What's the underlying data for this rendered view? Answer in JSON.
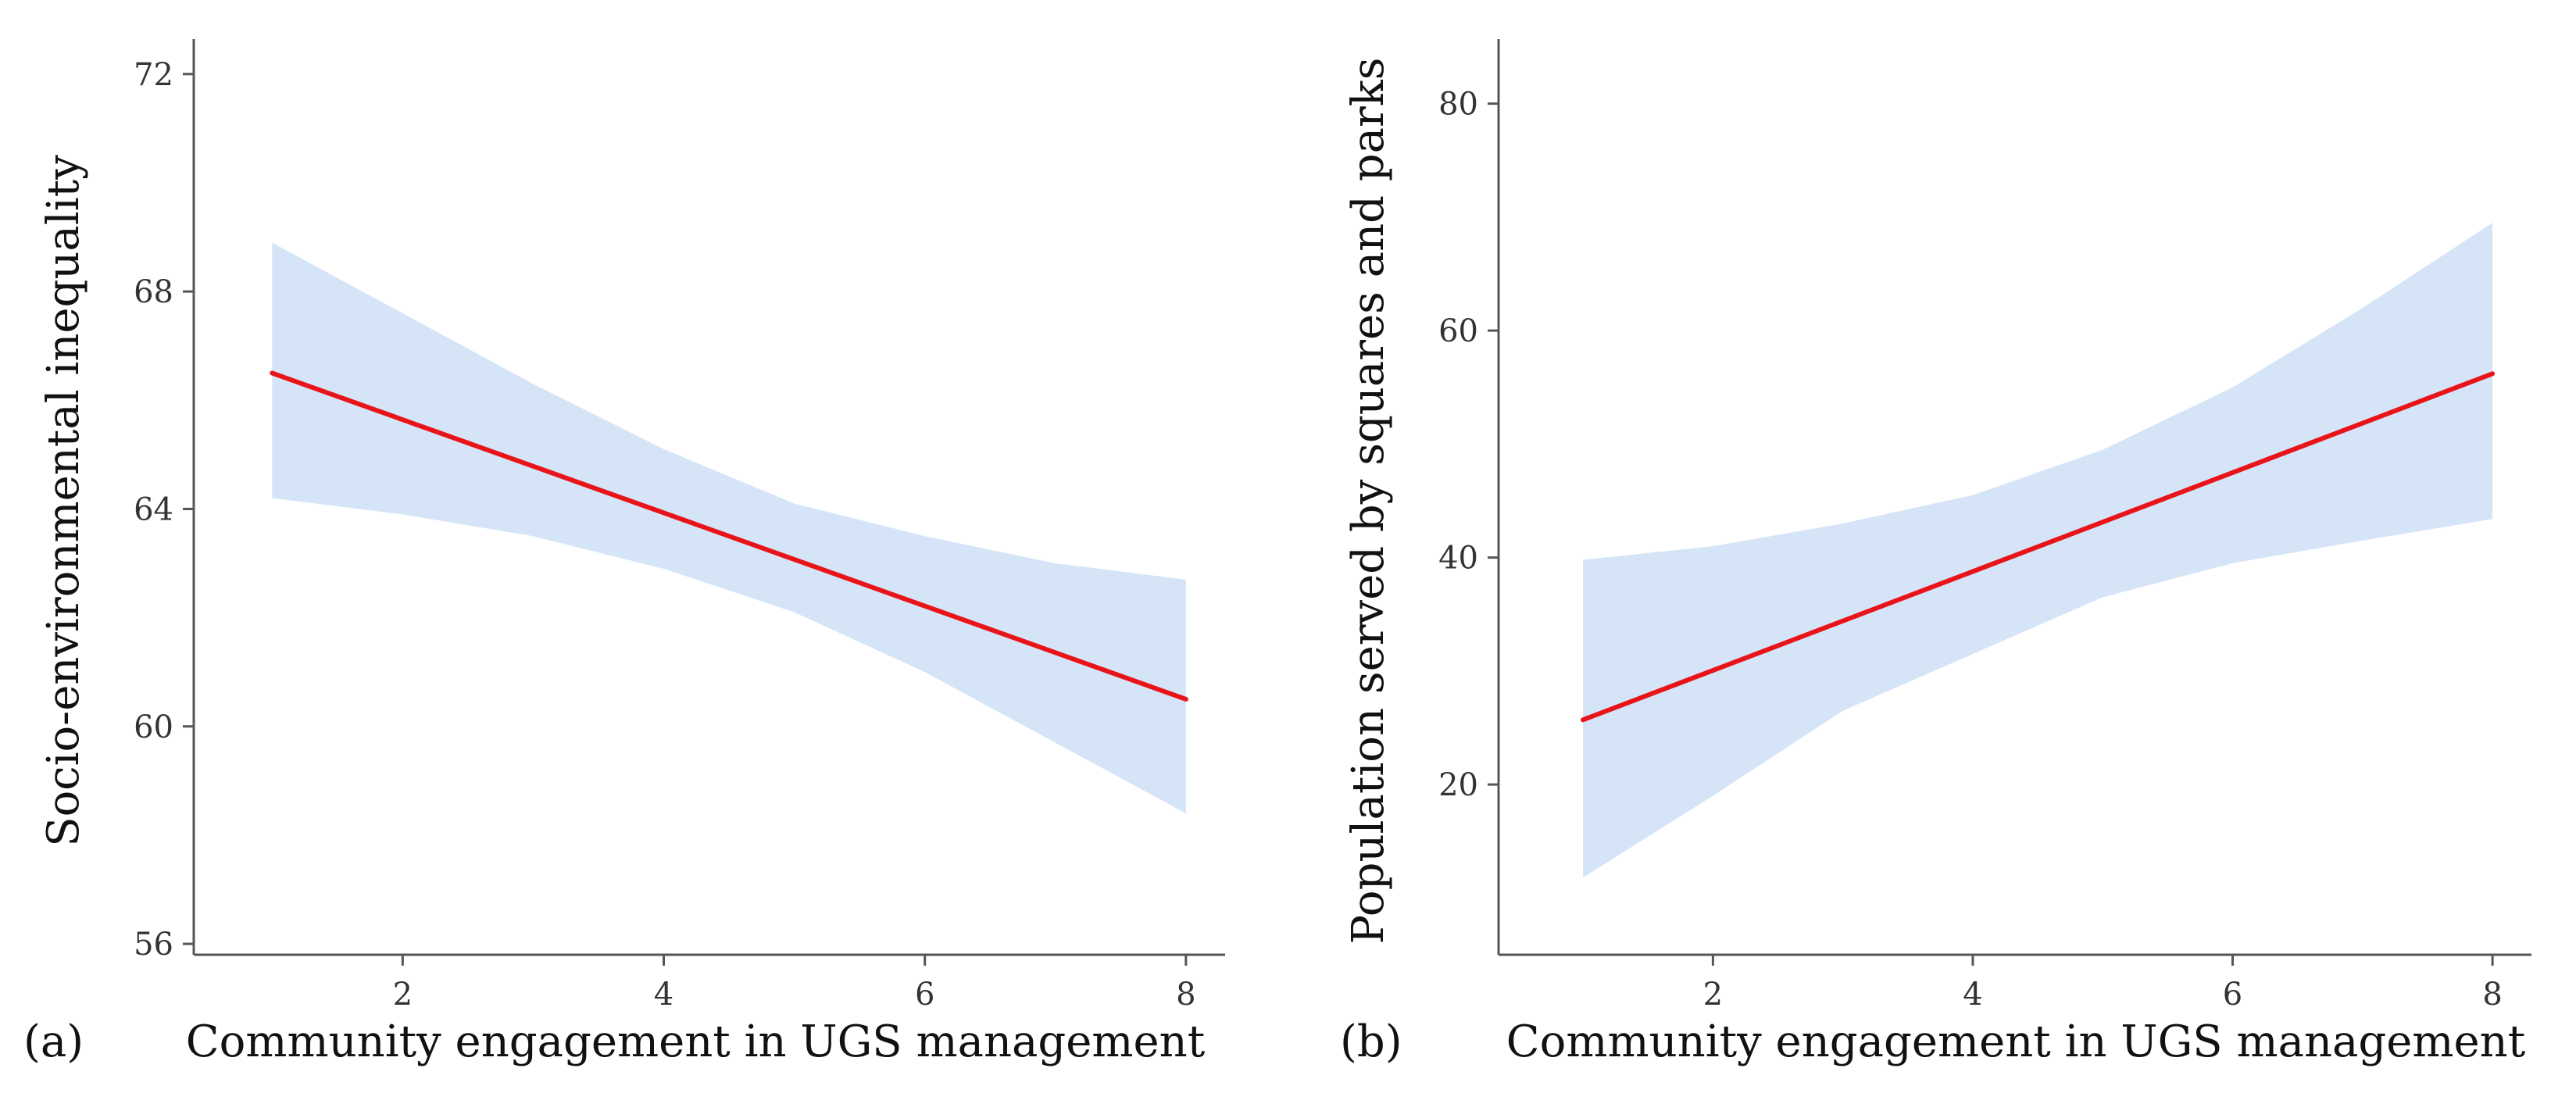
{
  "chart_data": [
    {
      "type": "line",
      "panel_label": "(a)",
      "xlabel": "Community engagement in UGS management",
      "ylabel": "Socio-environmental inequality",
      "xlim": [
        0.4,
        8.3
      ],
      "ylim": [
        55.8,
        72.5
      ],
      "x_ticks": [
        2,
        4,
        6,
        8
      ],
      "y_ticks": [
        56,
        60,
        64,
        68,
        72
      ],
      "series": [
        {
          "name": "fit",
          "color": "#e8141a",
          "x": [
            1,
            8
          ],
          "y": [
            66.5,
            60.5
          ]
        }
      ],
      "confidence_band": {
        "color": "#d5e5f7",
        "x": [
          1,
          2,
          3,
          4,
          5,
          6,
          7,
          8
        ],
        "upper": [
          68.9,
          67.6,
          66.3,
          65.1,
          64.1,
          63.5,
          63.0,
          62.7
        ],
        "lower": [
          64.2,
          63.9,
          63.5,
          62.9,
          62.1,
          61.0,
          59.7,
          58.4
        ]
      }
    },
    {
      "type": "line",
      "panel_label": "(b)",
      "xlabel": "Community engagement in UGS management",
      "ylabel": "Population served by squares and parks",
      "xlim": [
        0.35,
        8.3
      ],
      "ylim": [
        5,
        85
      ],
      "x_ticks": [
        2,
        4,
        6,
        8
      ],
      "y_ticks": [
        20,
        40,
        60,
        80
      ],
      "series": [
        {
          "name": "fit",
          "color": "#e8141a",
          "x": [
            1,
            8
          ],
          "y": [
            25.7,
            56.2
          ]
        }
      ],
      "confidence_band": {
        "color": "#d5e5f7",
        "x": [
          1,
          2,
          3,
          4,
          5,
          6,
          7,
          8
        ],
        "upper": [
          39.8,
          41.0,
          43.0,
          45.5,
          49.5,
          55.0,
          62.0,
          69.5
        ],
        "lower": [
          11.8,
          19.0,
          26.5,
          31.5,
          36.5,
          39.5,
          41.5,
          43.4
        ]
      }
    }
  ]
}
